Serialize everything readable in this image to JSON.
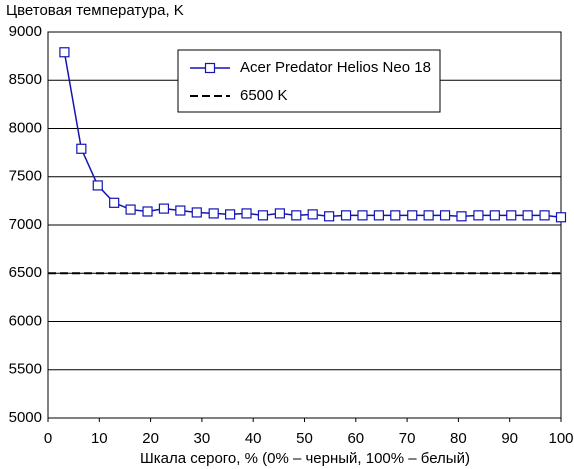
{
  "chart_data": {
    "type": "line",
    "title": "Цветовая температура, K",
    "x_label": "Шкала серого, % (0% – черный, 100% – белый)",
    "xlim": [
      0,
      100
    ],
    "xticks": [
      0,
      10,
      20,
      30,
      40,
      50,
      60,
      70,
      80,
      90,
      100
    ],
    "ylim": [
      5000,
      9000
    ],
    "yticks": [
      5000,
      5500,
      6000,
      6500,
      7000,
      7500,
      8000,
      8500,
      9000
    ],
    "grid": true,
    "legend": "top-center",
    "series": [
      {
        "name": "Acer Predator Helios Neo 18",
        "color": "#1414b4",
        "x": [
          3.2,
          6.5,
          9.7,
          12.9,
          16.1,
          19.4,
          22.6,
          25.8,
          29.0,
          32.3,
          35.5,
          38.7,
          41.9,
          45.2,
          48.4,
          51.6,
          54.8,
          58.1,
          61.3,
          64.5,
          67.7,
          71.0,
          74.2,
          77.4,
          80.6,
          83.9,
          87.1,
          90.3,
          93.5,
          96.8,
          100
        ],
        "values": [
          8790,
          7790,
          7410,
          7230,
          7160,
          7140,
          7170,
          7150,
          7130,
          7120,
          7110,
          7120,
          7100,
          7120,
          7100,
          7110,
          7090,
          7100,
          7100,
          7100,
          7100,
          7100,
          7100,
          7100,
          7090,
          7100,
          7100,
          7100,
          7100,
          7100,
          7080
        ]
      }
    ],
    "reference": {
      "name": "6500 K",
      "value": 6500,
      "color": "#000000"
    }
  }
}
